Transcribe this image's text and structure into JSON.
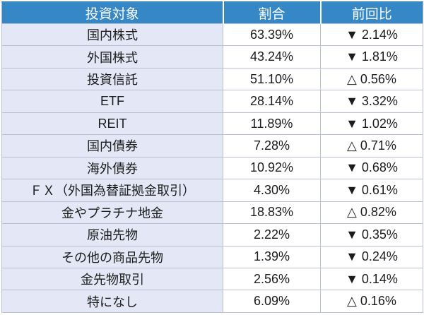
{
  "table": {
    "header": {
      "asset": "投資対象",
      "ratio": "割合",
      "change": "前回比"
    },
    "markers": {
      "down": "▼",
      "up": "△"
    },
    "rows": [
      {
        "label": "国内株式",
        "ratio": "63.39%",
        "change": "▼ 2.14%",
        "direction": "down"
      },
      {
        "label": "外国株式",
        "ratio": "43.24%",
        "change": "▼ 1.81%",
        "direction": "down"
      },
      {
        "label": "投資信託",
        "ratio": "51.10%",
        "change": "△ 0.56%",
        "direction": "up"
      },
      {
        "label": "ETF",
        "ratio": "28.14%",
        "change": "▼ 3.32%",
        "direction": "down"
      },
      {
        "label": "REIT",
        "ratio": "11.89%",
        "change": "▼ 1.02%",
        "direction": "down"
      },
      {
        "label": "国内債券",
        "ratio": "7.28%",
        "change": "△ 0.71%",
        "direction": "up"
      },
      {
        "label": "海外債券",
        "ratio": "10.92%",
        "change": "▼ 0.68%",
        "direction": "down"
      },
      {
        "label": "ＦＸ（外国為替証拠金取引）",
        "ratio": "4.30%",
        "change": "▼ 0.61%",
        "direction": "down"
      },
      {
        "label": "金やプラチナ地金",
        "ratio": "18.83%",
        "change": "△ 0.82%",
        "direction": "up"
      },
      {
        "label": "原油先物",
        "ratio": "2.22%",
        "change": "▼ 0.35%",
        "direction": "down"
      },
      {
        "label": "その他の商品先物",
        "ratio": "1.39%",
        "change": "▼ 0.24%",
        "direction": "down"
      },
      {
        "label": "金先物取引",
        "ratio": "2.56%",
        "change": "▼ 0.14%",
        "direction": "down"
      },
      {
        "label": "特になし",
        "ratio": "6.09%",
        "change": "△ 0.16%",
        "direction": "up"
      }
    ]
  },
  "colors": {
    "header_bg": "#3587c5",
    "header_text": "#ffffff",
    "label_cell_bg": "#e4e8f6",
    "value_cell_bg": "#ffffff",
    "grid_line": "#b9c1d2",
    "text": "#1c1c1c"
  },
  "chart_data": {
    "type": "table",
    "title": "",
    "columns": [
      "投資対象",
      "割合",
      "前回比"
    ],
    "rows": [
      [
        "国内株式",
        63.39,
        -2.14
      ],
      [
        "外国株式",
        43.24,
        -1.81
      ],
      [
        "投資信託",
        51.1,
        0.56
      ],
      [
        "ETF",
        28.14,
        -3.32
      ],
      [
        "REIT",
        11.89,
        -1.02
      ],
      [
        "国内債券",
        7.28,
        0.71
      ],
      [
        "海外債券",
        10.92,
        -0.68
      ],
      [
        "ＦＸ（外国為替証拠金取引）",
        4.3,
        -0.61
      ],
      [
        "金やプラチナ地金",
        18.83,
        0.82
      ],
      [
        "原油先物",
        2.22,
        -0.35
      ],
      [
        "その他の商品先物",
        1.39,
        -0.24
      ],
      [
        "金先物取引",
        2.56,
        -0.14
      ],
      [
        "特になし",
        6.09,
        0.16
      ]
    ],
    "notes": "前回比: negative values shown with ▼ (decrease), positive values shown with △ (increase); 割合 and 前回比 are percentages"
  }
}
